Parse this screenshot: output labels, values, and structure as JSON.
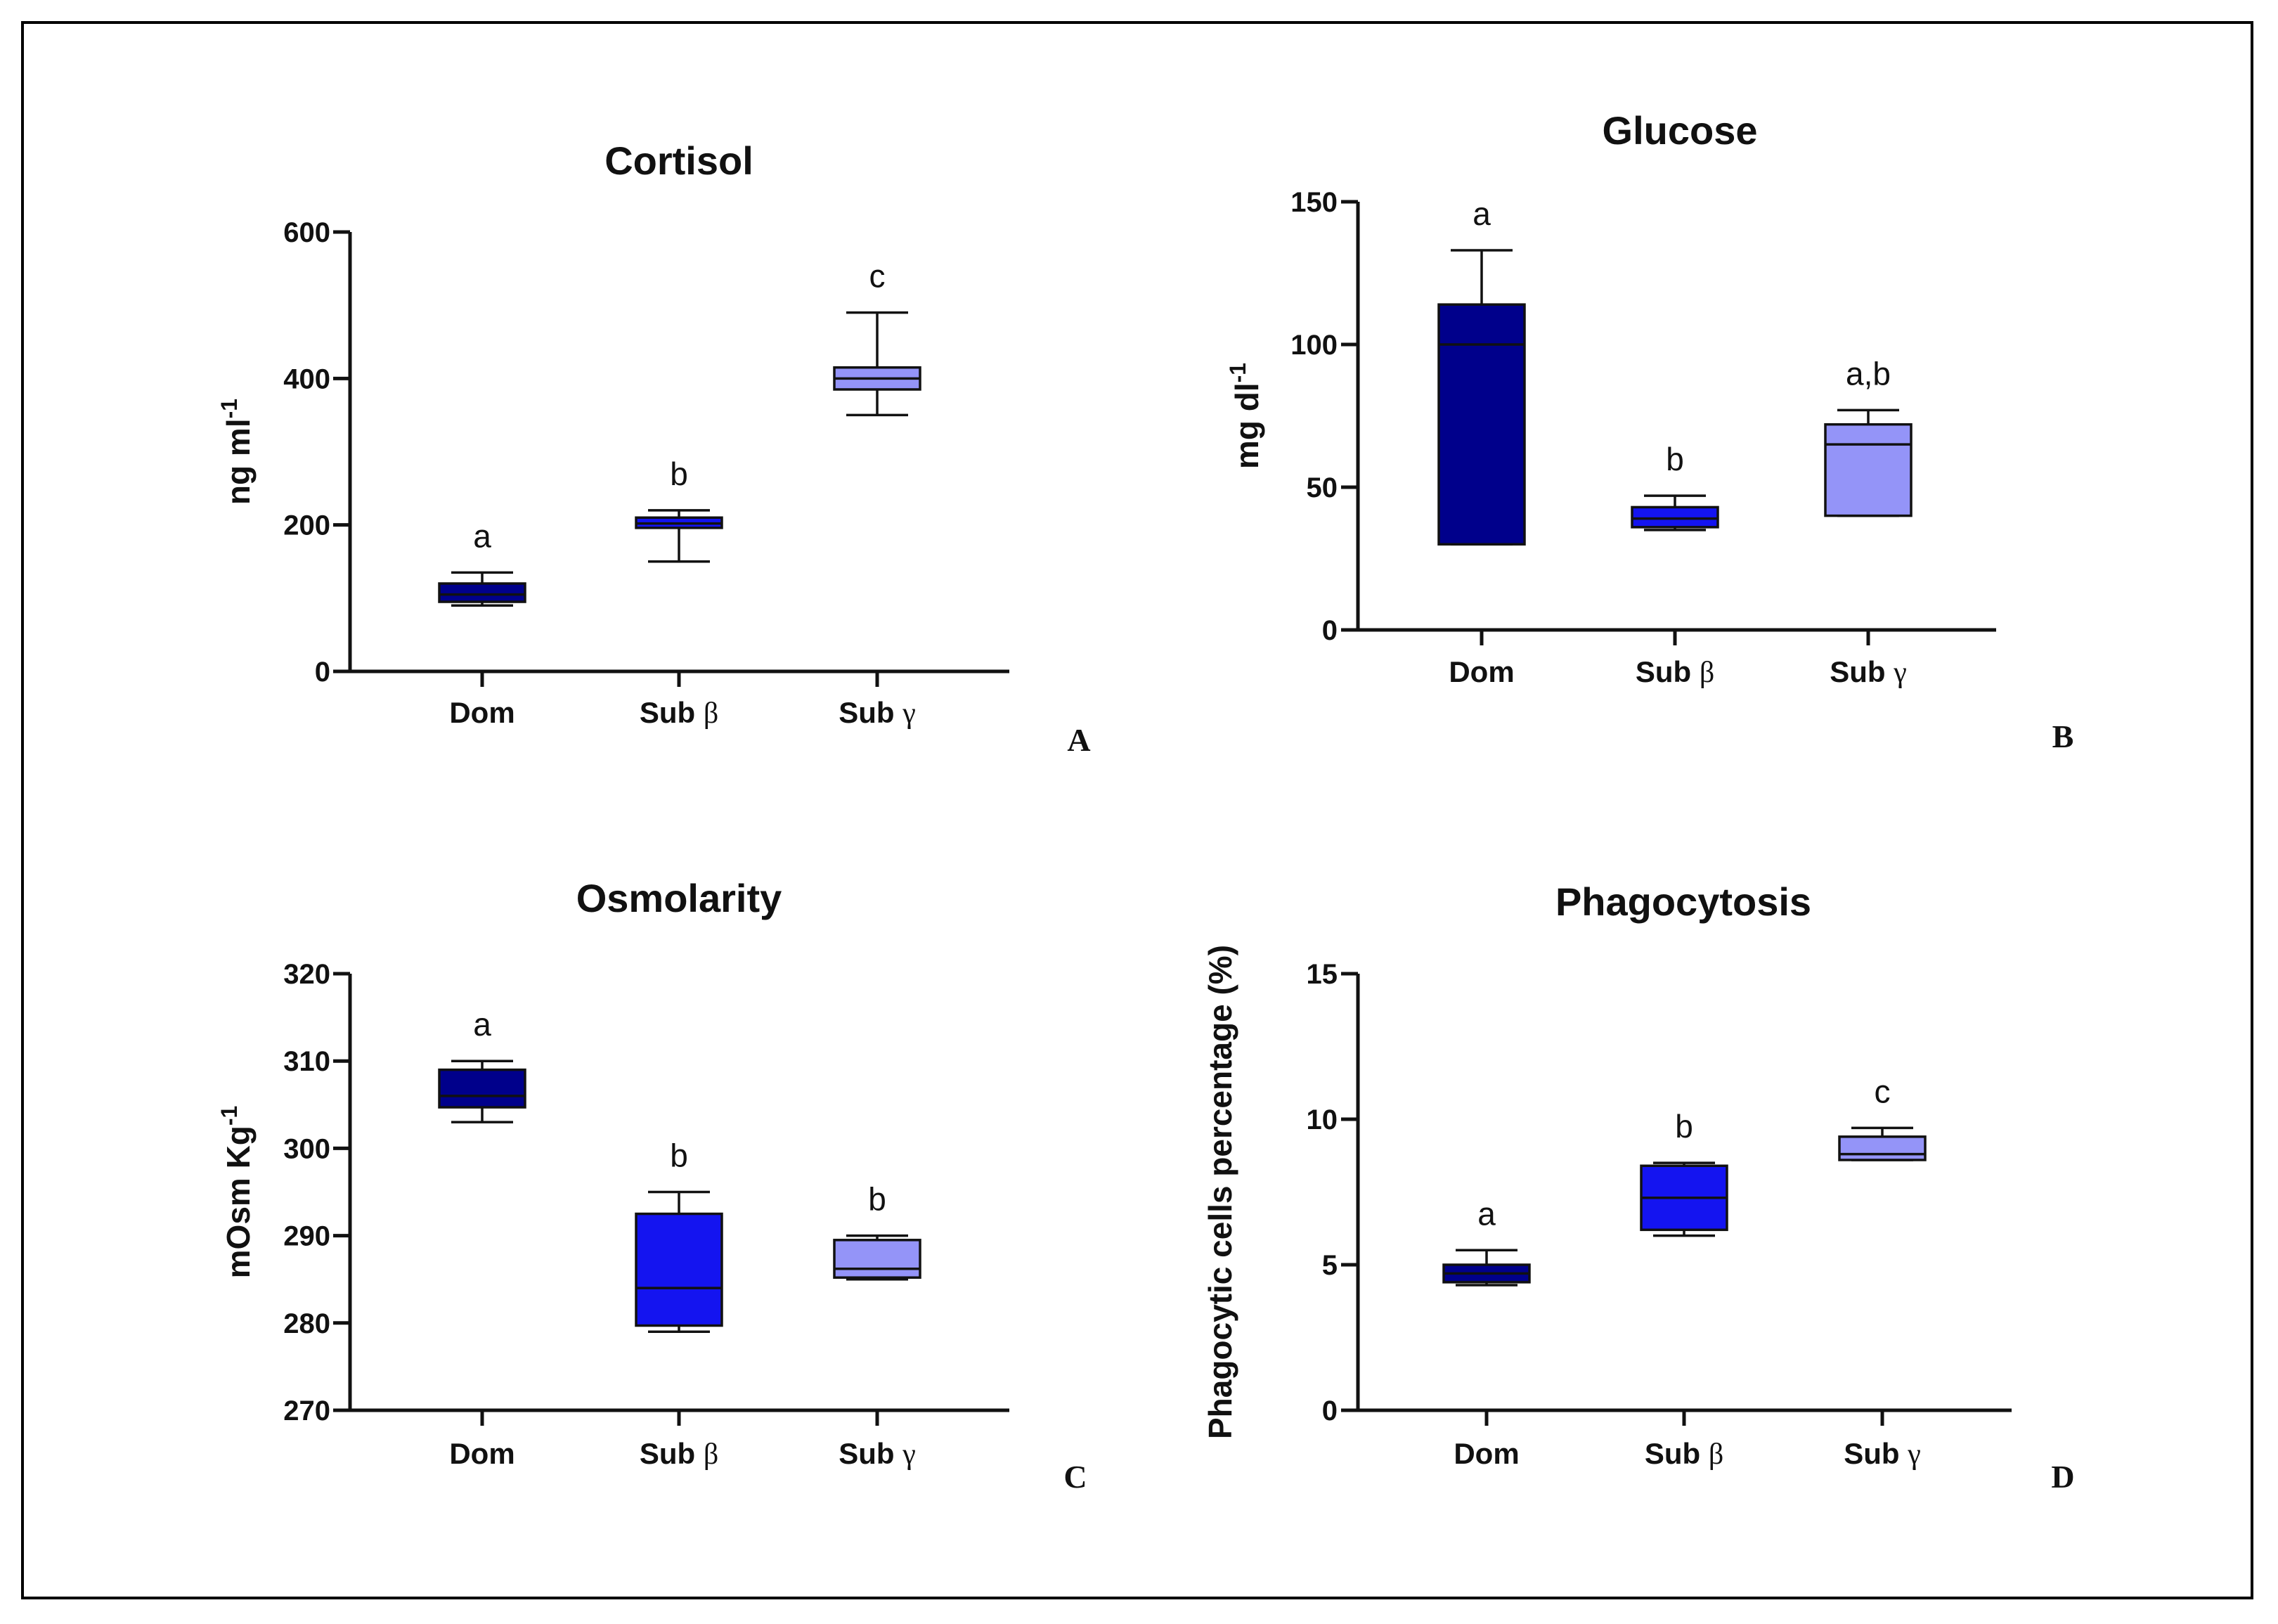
{
  "figure": {
    "border": true
  },
  "colors": {
    "dom": "#00008B",
    "sub_beta": "#1414F0",
    "sub_gamma": "#9494F8",
    "axis": "#111111"
  },
  "chart_data": [
    {
      "id": "A",
      "panel_letter": "A",
      "type": "box",
      "title": "Cortisol",
      "ylabel": "ng ml",
      "ylabel_sup": "-1",
      "ylim": [
        0,
        600
      ],
      "yticks": [
        0,
        200,
        400,
        600
      ],
      "categories": [
        "Dom",
        "Sub β",
        "Sub γ"
      ],
      "series": [
        {
          "name": "Dom",
          "min": 90,
          "q1": 95,
          "median": 105,
          "q3": 120,
          "max": 135,
          "letter": "a"
        },
        {
          "name": "Sub β",
          "min": 150,
          "q1": 196,
          "median": 202,
          "q3": 210,
          "max": 220,
          "letter": "b"
        },
        {
          "name": "Sub γ",
          "min": 350,
          "q1": 385,
          "median": 400,
          "q3": 415,
          "max": 490,
          "letter": "c"
        }
      ]
    },
    {
      "id": "B",
      "panel_letter": "B",
      "type": "box",
      "title": "Glucose",
      "ylabel": "mg dl",
      "ylabel_sup": "-1",
      "ylim": [
        0,
        150
      ],
      "yticks": [
        0,
        50,
        100,
        150
      ],
      "categories": [
        "Dom",
        "Sub β",
        "Sub γ"
      ],
      "series": [
        {
          "name": "Dom",
          "min": 30,
          "q1": 30,
          "median": 100,
          "q3": 114,
          "max": 133,
          "letter": "a"
        },
        {
          "name": "Sub β",
          "min": 35,
          "q1": 36,
          "median": 39,
          "q3": 43,
          "max": 47,
          "letter": "b"
        },
        {
          "name": "Sub γ",
          "min": 40,
          "q1": 40,
          "median": 65,
          "q3": 72,
          "max": 77,
          "letter": "a,b"
        }
      ]
    },
    {
      "id": "C",
      "panel_letter": "C",
      "type": "box",
      "title": "Osmolarity",
      "ylabel": "mOsm Kg",
      "ylabel_sup": "-1",
      "ylim": [
        270,
        320
      ],
      "yticks": [
        270,
        280,
        290,
        300,
        310,
        320
      ],
      "categories": [
        "Dom",
        "Sub β",
        "Sub γ"
      ],
      "series": [
        {
          "name": "Dom",
          "min": 303,
          "q1": 304.7,
          "median": 306,
          "q3": 309,
          "max": 310,
          "letter": "a"
        },
        {
          "name": "Sub β",
          "min": 279,
          "q1": 279.7,
          "median": 284,
          "q3": 292.5,
          "max": 295,
          "letter": "b"
        },
        {
          "name": "Sub γ",
          "min": 285,
          "q1": 285.2,
          "median": 286.2,
          "q3": 289.5,
          "max": 290,
          "letter": "b"
        }
      ]
    },
    {
      "id": "D",
      "panel_letter": "D",
      "type": "box",
      "title": "Phagocytosis",
      "ylabel": "Phagocytic cells percentage (%)",
      "ylabel_sup": "",
      "ylim": [
        0,
        15
      ],
      "yticks": [
        0,
        5,
        10,
        15
      ],
      "categories": [
        "Dom",
        "Sub β",
        "Sub γ"
      ],
      "series": [
        {
          "name": "Dom",
          "min": 4.3,
          "q1": 4.4,
          "median": 4.7,
          "q3": 5.0,
          "max": 5.5,
          "letter": "a"
        },
        {
          "name": "Sub β",
          "min": 6.0,
          "q1": 6.2,
          "median": 7.3,
          "q3": 8.4,
          "max": 8.5,
          "letter": "b"
        },
        {
          "name": "Sub γ",
          "min": 8.6,
          "q1": 8.6,
          "median": 8.8,
          "q3": 9.4,
          "max": 9.7,
          "letter": "c"
        }
      ]
    }
  ]
}
